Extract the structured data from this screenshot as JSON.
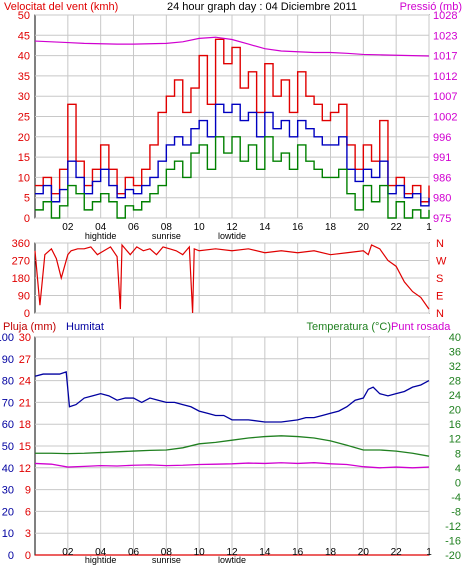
{
  "header": {
    "left_title": "Velocitat del vent (kmh)",
    "center_title": "24 hour graph day : 04 Diciembre 2011",
    "right_title": "Pressió (mb)"
  },
  "colors": {
    "wind_gust": "#e00000",
    "wind_avg": "#0000c0",
    "wind_low": "#008000",
    "pressure": "#d000d0",
    "direction": "#e00000",
    "humidity": "#0000a0",
    "temperature": "#208020",
    "dewpoint": "#d000d0",
    "rain": "#e00000",
    "grid": "#c8c8c8",
    "frame": "#000000"
  },
  "x_axis": {
    "ticks": [
      "02",
      "04",
      "06",
      "08",
      "10",
      "12",
      "14",
      "16",
      "18",
      "20",
      "22",
      "1"
    ],
    "markers": [
      "hightide",
      "sunrise",
      "lowtide"
    ]
  },
  "chart_data": [
    {
      "type": "line",
      "name_key": "wind_pressure",
      "x_range_hours": [
        0,
        24
      ],
      "y_left_label": "Velocitat del vent (kmh)",
      "y_left_ticks": [
        0,
        5,
        10,
        15,
        20,
        25,
        30,
        35,
        40,
        45,
        50
      ],
      "ylim_left": [
        0,
        50
      ],
      "y_right_label": "Pressió (mb)",
      "y_right_ticks": [
        975,
        980,
        986,
        991,
        996,
        1002,
        1007,
        1012,
        1017,
        1023,
        1028
      ],
      "ylim_right": [
        975,
        1028
      ],
      "grid": true,
      "series": [
        {
          "key": "gust",
          "axis": "left",
          "x": [
            0,
            0.5,
            1,
            1.5,
            2,
            2.5,
            3,
            3.5,
            4,
            4.5,
            5,
            5.5,
            6,
            6.5,
            7,
            7.5,
            8,
            8.5,
            9,
            9.5,
            10,
            10.5,
            11,
            11.5,
            12,
            12.5,
            13,
            13.5,
            14,
            14.5,
            15,
            15.5,
            16,
            16.5,
            17,
            17.5,
            18,
            18.5,
            19,
            19.5,
            20,
            20.5,
            21,
            21.5,
            22,
            22.5,
            23,
            23.5,
            24
          ],
          "values": [
            8,
            10,
            6,
            12,
            28,
            14,
            8,
            12,
            18,
            12,
            6,
            10,
            8,
            12,
            18,
            26,
            30,
            34,
            26,
            32,
            40,
            28,
            44,
            38,
            42,
            32,
            36,
            26,
            38,
            30,
            34,
            26,
            36,
            30,
            28,
            24,
            26,
            28,
            18,
            12,
            18,
            14,
            24,
            8,
            10,
            6,
            8,
            4,
            8
          ]
        },
        {
          "key": "avg",
          "axis": "left",
          "x": [
            0,
            0.5,
            1,
            1.5,
            2,
            2.5,
            3,
            3.5,
            4,
            4.5,
            5,
            5.5,
            6,
            6.5,
            7,
            7.5,
            8,
            8.5,
            9,
            9.5,
            10,
            10.5,
            11,
            11.5,
            12,
            12.5,
            13,
            13.5,
            14,
            14.5,
            15,
            15.5,
            16,
            16.5,
            17,
            17.5,
            18,
            18.5,
            19,
            19.5,
            20,
            20.5,
            21,
            21.5,
            22,
            22.5,
            23,
            23.5,
            24
          ],
          "values": [
            6,
            8,
            4,
            7,
            14,
            10,
            6,
            9,
            12,
            8,
            5,
            7,
            6,
            8,
            10,
            14,
            18,
            20,
            18,
            22,
            24,
            20,
            28,
            26,
            28,
            24,
            26,
            20,
            26,
            22,
            24,
            20,
            24,
            22,
            20,
            18,
            18,
            20,
            12,
            9,
            12,
            10,
            14,
            6,
            8,
            5,
            6,
            3,
            5
          ]
        },
        {
          "key": "low",
          "axis": "left",
          "x": [
            0,
            0.5,
            1,
            1.5,
            2,
            2.5,
            3,
            3.5,
            4,
            4.5,
            5,
            5.5,
            6,
            6.5,
            7,
            7.5,
            8,
            8.5,
            9,
            9.5,
            10,
            10.5,
            11,
            11.5,
            12,
            12.5,
            13,
            13.5,
            14,
            14.5,
            15,
            15.5,
            16,
            16.5,
            17,
            17.5,
            18,
            18.5,
            19,
            19.5,
            20,
            20.5,
            21,
            21.5,
            22,
            22.5,
            23,
            23.5,
            24
          ],
          "values": [
            2,
            4,
            0,
            3,
            8,
            6,
            2,
            4,
            6,
            4,
            0,
            3,
            2,
            4,
            6,
            8,
            12,
            14,
            10,
            16,
            18,
            12,
            20,
            16,
            20,
            14,
            18,
            12,
            20,
            14,
            16,
            12,
            18,
            14,
            12,
            10,
            10,
            12,
            6,
            2,
            8,
            4,
            8,
            0,
            4,
            0,
            2,
            0,
            2
          ]
        },
        {
          "key": "pressure",
          "axis": "right",
          "x": [
            0,
            1,
            2,
            3,
            4,
            5,
            6,
            7,
            8,
            9,
            10,
            11,
            12,
            13,
            14,
            15,
            16,
            17,
            18,
            19,
            20,
            21,
            22,
            23,
            24
          ],
          "values": [
            1021.2,
            1021,
            1020.8,
            1020.6,
            1020.5,
            1020.4,
            1020.4,
            1020.5,
            1020.6,
            1021,
            1021.9,
            1022.2,
            1021.6,
            1020.4,
            1019.2,
            1018.6,
            1018.4,
            1018.2,
            1018.2,
            1018.0,
            1017.7,
            1017.6,
            1017.5,
            1017.4,
            1017.3
          ]
        }
      ]
    },
    {
      "type": "line",
      "name_key": "wind_direction",
      "x_range_hours": [
        0,
        24
      ],
      "y_left_ticks": [
        0,
        90,
        180,
        270,
        360
      ],
      "ylim_left": [
        0,
        360
      ],
      "y_right_ticks": [
        "N",
        "W",
        "S",
        "E",
        "N"
      ],
      "grid": true,
      "series": [
        {
          "key": "direction",
          "x": [
            0,
            0.3,
            0.6,
            1,
            1.3,
            1.6,
            2,
            2.2,
            2.6,
            3,
            3.4,
            3.8,
            4.2,
            4.6,
            5,
            5.2,
            5.3,
            5.5,
            5.8,
            6.2,
            6.6,
            7,
            7.4,
            7.8,
            8.2,
            8.6,
            9,
            9.4,
            9.6,
            9.7,
            10,
            11,
            12,
            13,
            14,
            15,
            16,
            17,
            18,
            19,
            20,
            20.3,
            20.5,
            21,
            21.5,
            22,
            22.5,
            23,
            23.5,
            24
          ],
          "values": [
            320,
            40,
            300,
            330,
            280,
            180,
            300,
            320,
            330,
            330,
            340,
            300,
            320,
            340,
            290,
            20,
            350,
            330,
            300,
            340,
            320,
            330,
            300,
            340,
            330,
            320,
            300,
            340,
            0,
            330,
            320,
            330,
            320,
            330,
            310,
            320,
            310,
            320,
            300,
            310,
            320,
            300,
            350,
            330,
            270,
            240,
            160,
            110,
            80,
            20
          ]
        }
      ]
    },
    {
      "type": "line",
      "name_key": "humidity_temperature",
      "x_range_hours": [
        0,
        24
      ],
      "y_left_labels": [
        "Pluja (mm)",
        "Humitat"
      ],
      "y_left_ticks_rain": [
        0,
        3,
        6,
        9,
        12,
        15,
        18,
        21,
        24,
        27,
        30
      ],
      "y_left_ticks_humidity": [
        0,
        10,
        20,
        30,
        40,
        50,
        60,
        70,
        80,
        90,
        100
      ],
      "y_right_label": "Temperatura (°C)",
      "y_right_label2": "Punt rosada",
      "y_right_ticks": [
        -20,
        -16,
        -12,
        -8,
        -4,
        0,
        4,
        8,
        12,
        16,
        20,
        24,
        28,
        32,
        36,
        40
      ],
      "ylim_right": [
        -20,
        40
      ],
      "grid": true,
      "series": [
        {
          "key": "humidity",
          "axis": "humidity",
          "x": [
            0,
            0.5,
            1,
            1.5,
            1.9,
            2.1,
            2.5,
            3,
            3.5,
            4,
            4.5,
            5,
            5.5,
            6,
            6.5,
            7,
            7.5,
            8,
            8.5,
            9,
            9.5,
            10,
            10.5,
            11,
            11.5,
            12,
            13,
            14,
            15,
            16,
            16.5,
            17,
            17.5,
            18,
            18.5,
            19,
            19.5,
            20,
            20.3,
            20.6,
            21,
            21.5,
            22,
            22.5,
            23,
            23.5,
            24
          ],
          "values": [
            82,
            83,
            83,
            83,
            84,
            68,
            69,
            72,
            73,
            74,
            73,
            71,
            72,
            72,
            70,
            72,
            71,
            70,
            70,
            69,
            68,
            66,
            65,
            64,
            64,
            62,
            62,
            61,
            61,
            62,
            63,
            63,
            64,
            65,
            66,
            68,
            71,
            72,
            76,
            77,
            74,
            73,
            74,
            75,
            77,
            78,
            80
          ]
        },
        {
          "key": "temperature",
          "axis": "right",
          "x": [
            0,
            1,
            2,
            3,
            4,
            5,
            6,
            7,
            8,
            9,
            10,
            11,
            12,
            13,
            14,
            15,
            16,
            17,
            18,
            19,
            20,
            21,
            22,
            23,
            24
          ],
          "values": [
            8.0,
            8.0,
            7.9,
            8.0,
            8.2,
            8.4,
            8.6,
            8.8,
            8.9,
            9.5,
            10.6,
            11.0,
            11.6,
            12.2,
            12.6,
            12.8,
            12.6,
            12.2,
            11.4,
            10.2,
            8.9,
            8.9,
            8.6,
            8.0,
            7.2
          ]
        },
        {
          "key": "dewpoint",
          "axis": "right",
          "x": [
            0,
            1,
            2,
            3,
            4,
            5,
            6,
            7,
            8,
            9,
            10,
            11,
            12,
            13,
            14,
            15,
            16,
            17,
            18,
            19,
            20,
            21,
            22,
            23,
            24
          ],
          "values": [
            5.2,
            5.0,
            4.2,
            4.4,
            4.6,
            4.5,
            4.7,
            4.8,
            4.6,
            4.7,
            4.9,
            5.0,
            5.1,
            5.3,
            5.2,
            5.4,
            5.2,
            5.4,
            5.1,
            4.9,
            4.3,
            4.0,
            4.2,
            4.0,
            4.2
          ]
        },
        {
          "key": "rain",
          "axis": "rain",
          "x": [
            0,
            24
          ],
          "values": [
            0,
            0
          ]
        }
      ]
    }
  ]
}
